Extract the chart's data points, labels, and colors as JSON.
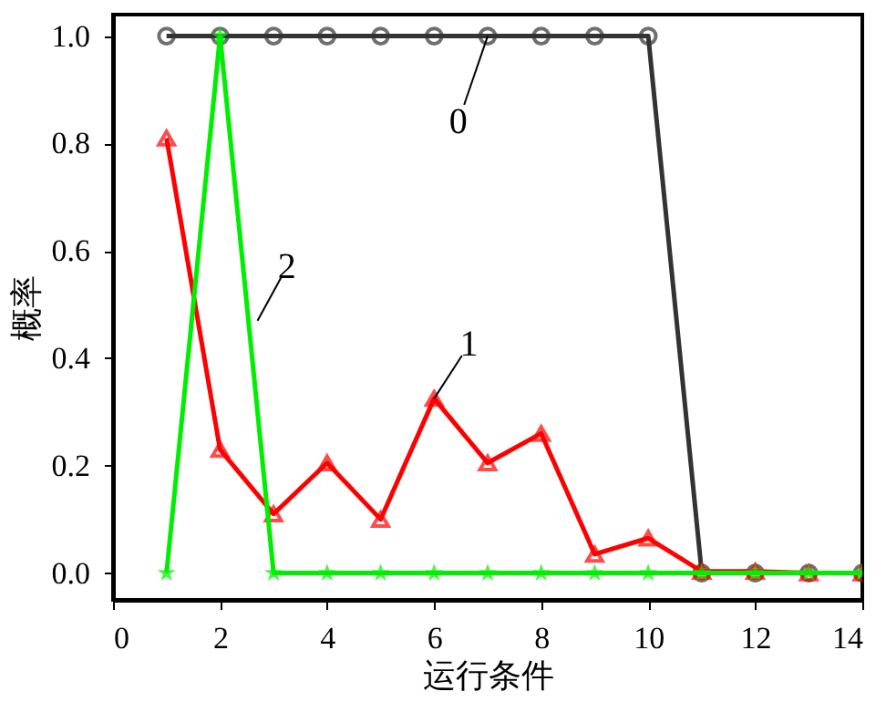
{
  "chart_data": {
    "type": "line",
    "xlabel": "运行条件",
    "ylabel": "概率",
    "x": [
      1,
      2,
      3,
      4,
      5,
      6,
      7,
      8,
      9,
      10,
      11,
      12,
      13,
      14
    ],
    "series": [
      {
        "color": "#333333",
        "marker": "circle",
        "values": [
          1,
          1,
          1,
          1,
          1,
          1,
          1,
          1,
          1,
          1,
          0,
          0,
          0,
          0
        ]
      },
      {
        "color": "#ff0000",
        "marker": "triangle",
        "values": [
          0.81,
          0.23,
          0.11,
          0.205,
          0.1,
          0.325,
          0.205,
          0.26,
          0.035,
          0.065,
          0.003,
          0.003,
          0,
          0
        ]
      },
      {
        "color": "#00ee00",
        "marker": "star",
        "values": [
          0,
          1,
          0,
          0,
          0,
          0,
          0,
          0,
          0,
          0,
          0,
          0,
          0,
          0
        ]
      }
    ],
    "xlim": [
      0,
      14
    ],
    "xticks": [
      0,
      2,
      4,
      6,
      8,
      10,
      12,
      14
    ],
    "ylim": [
      -0.05,
      1.04
    ],
    "yticks": [
      {
        "value": 0,
        "label": "0.0"
      },
      {
        "value": 0.2,
        "label": "0.2"
      },
      {
        "value": 0.4,
        "label": "0.4"
      },
      {
        "value": 0.6,
        "label": "0.6"
      },
      {
        "value": 0.8,
        "label": "0.8"
      },
      {
        "value": 1,
        "label": "1.0"
      }
    ],
    "grid": false,
    "annotations": [
      {
        "text": "0",
        "x": 7,
        "y": 1.0
      },
      {
        "text": "1",
        "x": 6,
        "y": 0.325
      },
      {
        "text": "2",
        "x": 2.7,
        "y": 0.47
      }
    ]
  }
}
